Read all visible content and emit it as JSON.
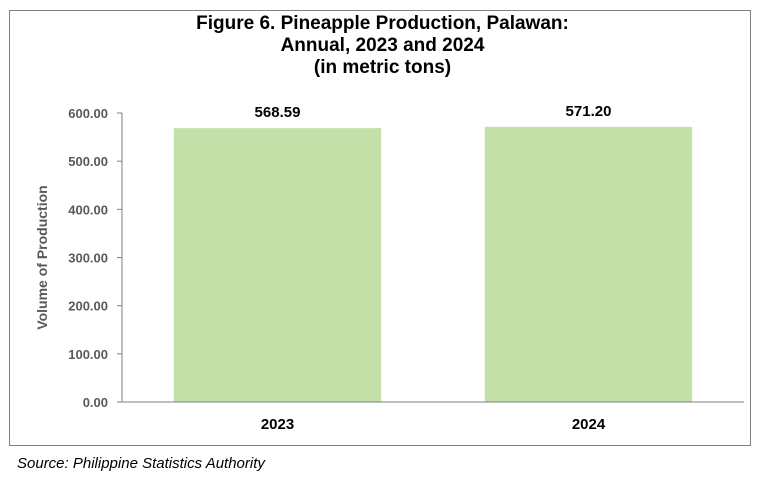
{
  "chart_data": {
    "type": "bar",
    "title_lines": [
      "Figure 6. Pineapple Production, Palawan:",
      "Annual, 2023 and 2024",
      "(in metric tons)"
    ],
    "xlabel": "",
    "ylabel": "Volume of Production",
    "categories": [
      "2023",
      "2024"
    ],
    "values": [
      568.59,
      571.2
    ],
    "data_labels": [
      "568.59",
      "571.20"
    ],
    "yticks": [
      0,
      100,
      200,
      300,
      400,
      500,
      600
    ],
    "ytick_labels": [
      "0.00",
      "100.00",
      "200.00",
      "300.00",
      "400.00",
      "500.00",
      "600.00"
    ],
    "ylim": [
      0,
      600
    ],
    "grid": false,
    "legend": "none",
    "bar_color": "#c2e0a7"
  },
  "source": "Source: Philippine Statistics Authority"
}
